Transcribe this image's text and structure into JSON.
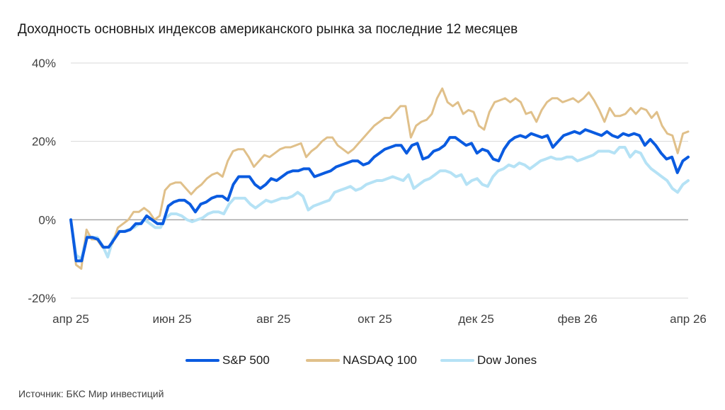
{
  "title": "Доходность основных индексов американского рынка за последние 12 месяцев",
  "source": "Источник: БКС Мир инвестиций",
  "chart_data": {
    "type": "line",
    "title": "Доходность основных индексов американского рынка за последние 12 месяцев",
    "xlabel": "",
    "ylabel": "",
    "x_unit": "weeks since апр 25",
    "xlim": [
      0,
      53
    ],
    "ylim": [
      -20,
      40
    ],
    "yticks": [
      -20,
      0,
      20,
      40
    ],
    "ytick_labels": [
      "-20%",
      "0%",
      "20%",
      "40%"
    ],
    "xticks": [
      0,
      8.7,
      17.4,
      26.1,
      34.8,
      43.5,
      53
    ],
    "xtick_labels": [
      "апр 25",
      "июн 25",
      "авг 25",
      "окт 25",
      "дек 25",
      "фев 26",
      "апр 26"
    ],
    "grid": true,
    "legend_position": "bottom",
    "series": [
      {
        "name": "S&P 500",
        "color": "#0a5be0",
        "values": [
          0,
          -10.5,
          -10.5,
          -4.5,
          -4.5,
          -5,
          -7,
          -7,
          -5,
          -3,
          -3,
          -2.5,
          -1,
          -1,
          1,
          0,
          -1,
          -1,
          3.5,
          4.5,
          5,
          5,
          4,
          2,
          4,
          4.5,
          5.5,
          6,
          6,
          5,
          9,
          11,
          11,
          11,
          9,
          8,
          9,
          10.5,
          10,
          11,
          12,
          12.5,
          12.5,
          13,
          13,
          11,
          11.5,
          12,
          12.5,
          13.5,
          14,
          14.5,
          15,
          15,
          14,
          14.5,
          16,
          17,
          18,
          18.5,
          19,
          19,
          17,
          19,
          19.5,
          15.5,
          16,
          17.5,
          18,
          19,
          21,
          21,
          20,
          19,
          19.5,
          17,
          18,
          17.5,
          15.5,
          15,
          18,
          20,
          21,
          21.5,
          21,
          22,
          21.5,
          21,
          21.5,
          18.5,
          20,
          21.5,
          22,
          22.5,
          22,
          23,
          22.5,
          22,
          21.5,
          22.5,
          21.5,
          21,
          22,
          21.5,
          22,
          21.5,
          19,
          20.5,
          19,
          17,
          15.5,
          16,
          12,
          15,
          16
        ],
        "width": 4
      },
      {
        "name": "NASDAQ 100",
        "color": "#e0c08a",
        "values": [
          0,
          -11.5,
          -12.5,
          -2.5,
          -5,
          -5,
          -7,
          -7,
          -6,
          -2,
          -1,
          0,
          2,
          2,
          3,
          2,
          0,
          1,
          7.5,
          9,
          9.5,
          9.5,
          8,
          6.5,
          8,
          9,
          10.5,
          11.5,
          12,
          11,
          15,
          17.5,
          18,
          18,
          16,
          13.5,
          15,
          16.5,
          16,
          17,
          18,
          18.5,
          18.5,
          19,
          19.5,
          16,
          17.5,
          18.5,
          20,
          21,
          21,
          19,
          18,
          17,
          18,
          19.5,
          21,
          22.5,
          24,
          25,
          26,
          26,
          27.5,
          29,
          29,
          21,
          24,
          25,
          25.5,
          27,
          31,
          33.5,
          30,
          29,
          30,
          27,
          28,
          27.5,
          24,
          23,
          27.5,
          30,
          30.5,
          31,
          30,
          31,
          30,
          27,
          27.5,
          25,
          28,
          30,
          31,
          31,
          30,
          30.5,
          31,
          30,
          31,
          32.5,
          30.5,
          28,
          25,
          28.5,
          26.5,
          26.5,
          27,
          28.5,
          27,
          28.5,
          28,
          26,
          27.5,
          24,
          22,
          21.5,
          17,
          22,
          22.5
        ],
        "width": 3
      },
      {
        "name": "Dow Jones",
        "color": "#b5e2f5",
        "values": [
          0,
          -9,
          -10,
          -4,
          -4.5,
          -4.5,
          -6.5,
          -9.5,
          -5,
          -3,
          -3,
          -2.5,
          -2,
          -1,
          0,
          -1,
          -2,
          -2,
          0.5,
          1.5,
          1.5,
          1,
          0,
          -0.5,
          0,
          0.5,
          1.5,
          2,
          2,
          1.5,
          4,
          5.5,
          5.5,
          5.5,
          4,
          3,
          4,
          5,
          4.5,
          5,
          5.5,
          5.5,
          6,
          7,
          6,
          2.5,
          3.5,
          4,
          4.5,
          5,
          7,
          7.5,
          8,
          8.5,
          7.5,
          8,
          9,
          9.5,
          10,
          10,
          10.5,
          11,
          10.5,
          10,
          11.5,
          8,
          9,
          10,
          10.5,
          11.5,
          12.5,
          12.5,
          12,
          11,
          11.5,
          9,
          10,
          10.5,
          9,
          8.5,
          11,
          12.5,
          13,
          14,
          13.5,
          14.5,
          14,
          13,
          14,
          15,
          15.5,
          16,
          15.5,
          15.5,
          16,
          16,
          15,
          15.5,
          16,
          16.5,
          17.5,
          17.5,
          17.5,
          17,
          18.5,
          18.5,
          16,
          17.5,
          17,
          14.5,
          13,
          12,
          11,
          10,
          8,
          7,
          9,
          10
        ],
        "width": 4
      }
    ]
  }
}
